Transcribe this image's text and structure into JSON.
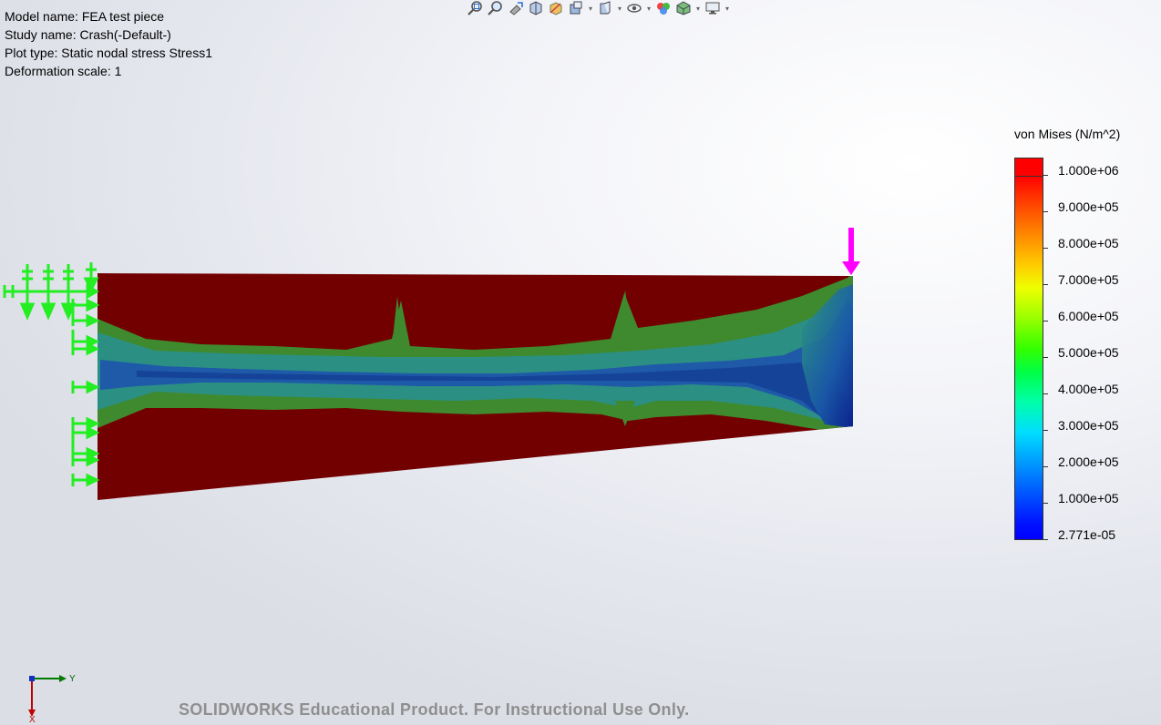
{
  "info": {
    "model_name": "Model name: FEA test piece",
    "study_name": "Study name: Crash(-Default-)",
    "plot_type": "Plot type: Static nodal stress Stress1",
    "deformation_scale": "Deformation scale: 1"
  },
  "toolbar": {
    "icons": [
      "zoom-to-fit-icon",
      "zoom-to-area-icon",
      "previous-view-icon",
      "section-view-icon",
      "view-orientation-icon",
      "display-style-icon",
      "hide-show-items-icon",
      "edit-appearance-icon",
      "apply-scene-icon",
      "view-settings-icon"
    ]
  },
  "legend": {
    "title": "von Mises (N/m^2)",
    "ticks": [
      "1.000e+06",
      "9.000e+05",
      "8.000e+05",
      "7.000e+05",
      "6.000e+05",
      "5.000e+05",
      "4.000e+05",
      "3.000e+05",
      "2.000e+05",
      "1.000e+05",
      "2.771e-05"
    ]
  },
  "triad": {
    "y_label": "Y",
    "x_label": "X"
  },
  "watermark": "SOLIDWORKS Educational Product. For Instructional Use Only.",
  "colors": {
    "high_stress": "#720000",
    "mid_stress": "#2e9a78",
    "low_stress": "#0a2aa0",
    "fixture": "#22ee22",
    "load": "#ff00ff"
  }
}
